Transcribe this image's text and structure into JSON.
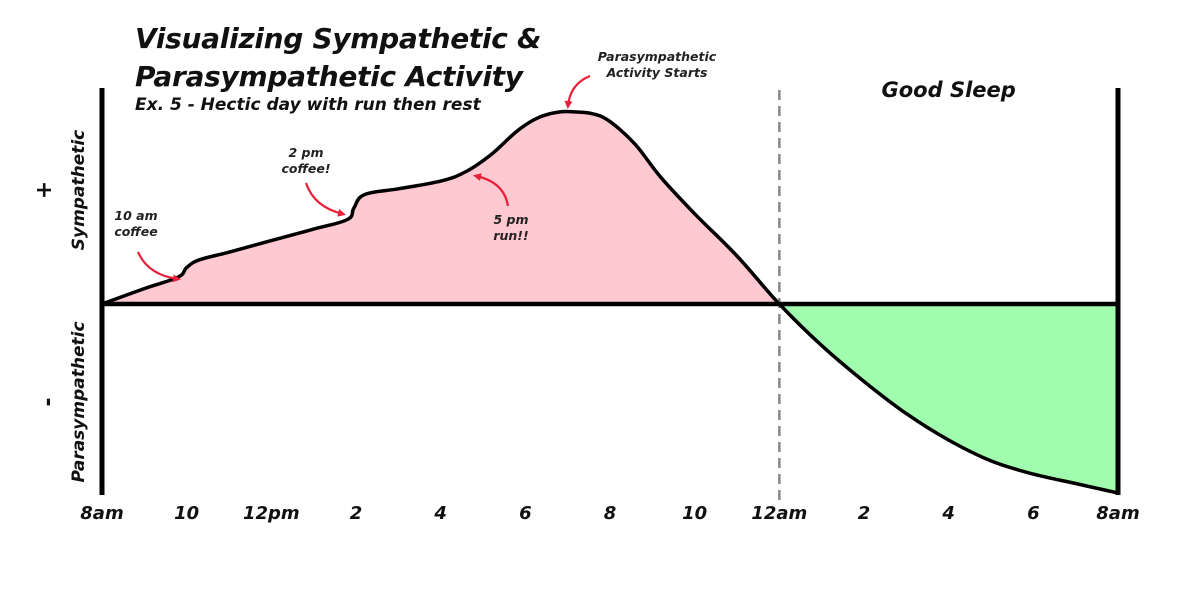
{
  "title_line1": "Visualizing Sympathetic &",
  "title_line2": "Parasympathetic Activity",
  "subtitle": "Ex. 5 - Hectic day with run then rest",
  "colors": {
    "sympathetic_fill": "#ffc9d1",
    "parasympathetic_fill": "#a0fdae",
    "arrow": "#e8203a",
    "line": "#000000",
    "divider": "#888888"
  },
  "chart_data": {
    "type": "area",
    "title": "Visualizing Sympathetic & Parasympathetic Activity",
    "subtitle": "Ex. 5 - Hectic day with run then rest",
    "x_unit": "hours after 8am",
    "xlim": [
      0,
      24
    ],
    "ylim": [
      -1,
      1
    ],
    "x_ticks": [
      {
        "x": 0,
        "label": "8am"
      },
      {
        "x": 2,
        "label": "10"
      },
      {
        "x": 4,
        "label": "12pm"
      },
      {
        "x": 6,
        "label": "2"
      },
      {
        "x": 8,
        "label": "4"
      },
      {
        "x": 10,
        "label": "6"
      },
      {
        "x": 12,
        "label": "8"
      },
      {
        "x": 14,
        "label": "10"
      },
      {
        "x": 16,
        "label": "12am"
      },
      {
        "x": 18,
        "label": "2"
      },
      {
        "x": 20,
        "label": "4"
      },
      {
        "x": 22,
        "label": "6"
      },
      {
        "x": 24,
        "label": "8am"
      }
    ],
    "y_labels": {
      "positive": "Sympathetic",
      "negative": "Parasympathetic",
      "positive_sign": "+",
      "negative_sign": "-"
    },
    "series": [
      {
        "x": [
          0,
          1,
          1.8,
          2.0,
          2.3,
          3,
          4,
          5,
          5.8,
          5.95,
          6.2,
          7,
          8,
          8.6,
          9.2,
          9.8,
          10.3,
          10.8,
          11.2,
          11.6,
          12,
          12.6,
          13.2,
          14,
          15,
          16,
          17,
          18,
          19,
          20,
          21,
          22,
          23,
          24
        ],
        "y": [
          0,
          0.08,
          0.14,
          0.19,
          0.23,
          0.27,
          0.33,
          0.39,
          0.44,
          0.5,
          0.57,
          0.6,
          0.64,
          0.69,
          0.78,
          0.9,
          0.97,
          1.0,
          1.0,
          0.99,
          0.95,
          0.83,
          0.66,
          0.47,
          0.25,
          0,
          -0.22,
          -0.41,
          -0.58,
          -0.72,
          -0.83,
          -0.9,
          -0.95,
          -1.0
        ]
      }
    ],
    "annotations": [
      {
        "x": 2.0,
        "y": 0.19,
        "text": [
          "10 am",
          "coffee"
        ]
      },
      {
        "x": 5.95,
        "y": 0.5,
        "text": [
          "2 pm",
          "coffee!"
        ]
      },
      {
        "x": 8.6,
        "y": 0.69,
        "text": [
          "5 pm",
          "run!!"
        ]
      },
      {
        "x": 11.0,
        "y": 1.0,
        "text": [
          "Parasympathetic",
          "Activity Starts"
        ]
      }
    ],
    "regions": [
      {
        "from": 16,
        "to": 24,
        "label": "Good Sleep"
      }
    ],
    "divider_x": 16,
    "grid": false,
    "legend": "none"
  }
}
